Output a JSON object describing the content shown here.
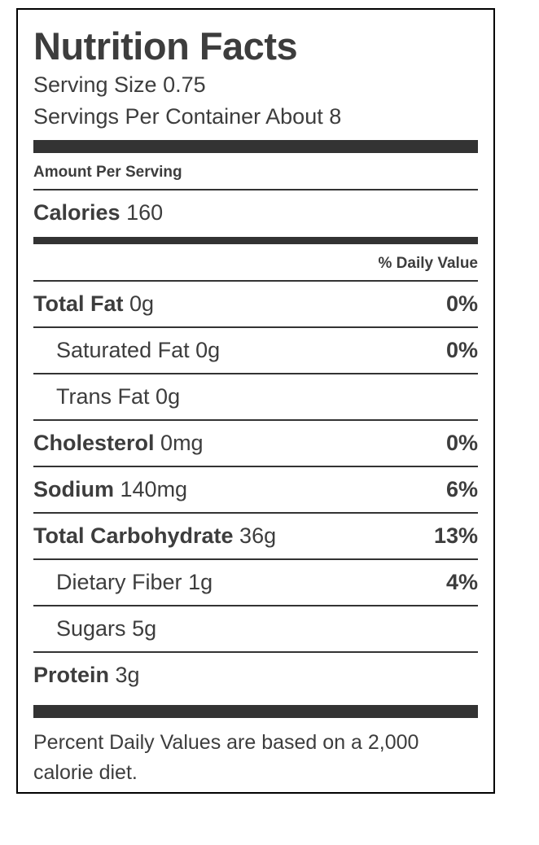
{
  "label": {
    "title": "Nutrition Facts",
    "serving_size": "Serving Size 0.75",
    "servings_per_container": "Servings Per Container About 8",
    "amount_per_serving": "Amount Per Serving",
    "calories_label": "Calories",
    "calories_value": "160",
    "daily_value_header": "% Daily Value",
    "rows": [
      {
        "name": "Total Fat",
        "amount": "0g",
        "dv": "0%",
        "bold": true,
        "indent": false
      },
      {
        "name": "Saturated Fat",
        "amount": "0g",
        "dv": "0%",
        "bold": false,
        "indent": true
      },
      {
        "name": "Trans Fat",
        "amount": "0g",
        "dv": "",
        "bold": false,
        "indent": true
      },
      {
        "name": "Cholesterol",
        "amount": "0mg",
        "dv": "0%",
        "bold": true,
        "indent": false
      },
      {
        "name": "Sodium",
        "amount": "140mg",
        "dv": "6%",
        "bold": true,
        "indent": false
      },
      {
        "name": "Total Carbohydrate",
        "amount": "36g",
        "dv": "13%",
        "bold": true,
        "indent": false
      },
      {
        "name": "Dietary Fiber",
        "amount": "1g",
        "dv": "4%",
        "bold": false,
        "indent": true
      },
      {
        "name": "Sugars",
        "amount": "5g",
        "dv": "",
        "bold": false,
        "indent": true
      },
      {
        "name": "Protein",
        "amount": "3g",
        "dv": "",
        "bold": true,
        "indent": false
      }
    ],
    "footnote": "Percent Daily Values are based on a 2,000 calorie diet.",
    "colors": {
      "text": "#3d3d3d",
      "bar": "#333333",
      "border": "#000000",
      "background": "#ffffff"
    }
  }
}
